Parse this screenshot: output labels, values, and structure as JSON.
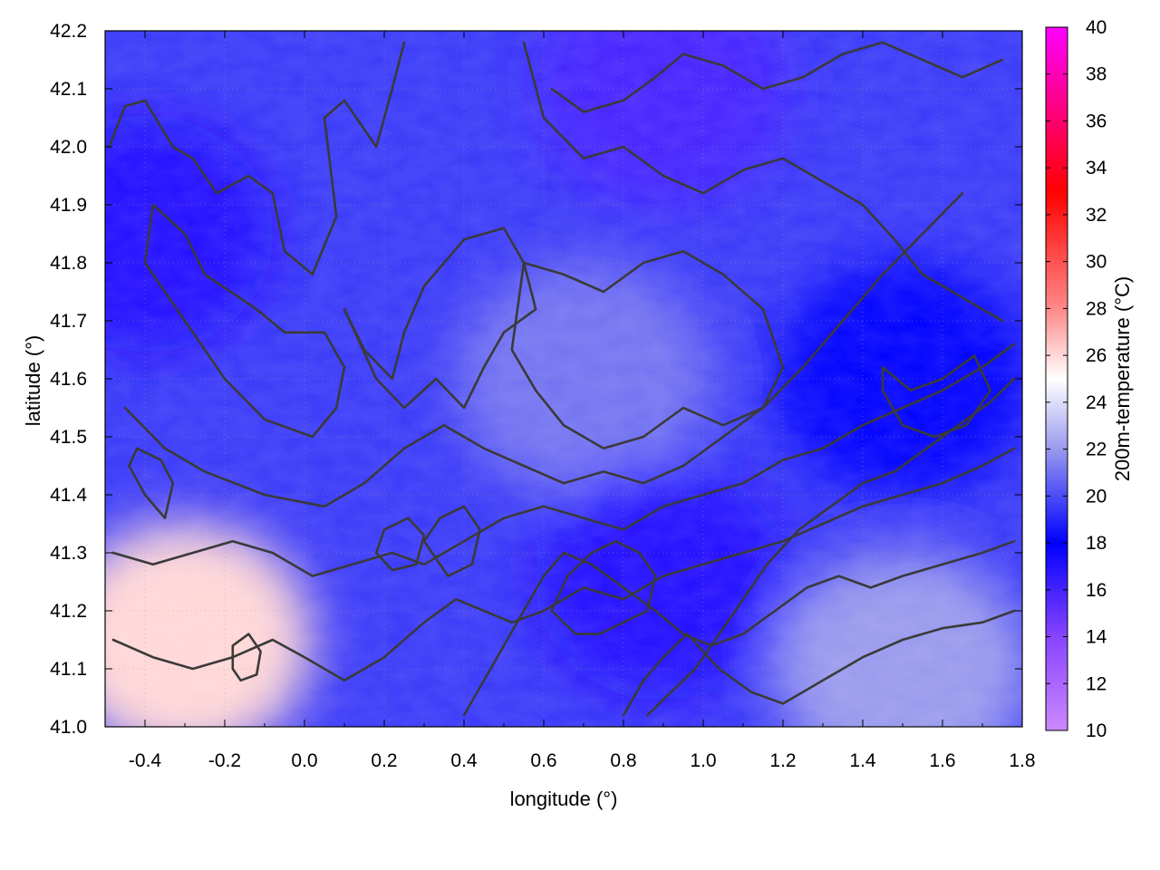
{
  "chart_data": {
    "type": "heatmap",
    "title": "",
    "xlabel": "longitude (°)",
    "ylabel": "latitude (°)",
    "colorbar_label": "200m-temperature (°C)",
    "xlim": [
      -0.5,
      1.8
    ],
    "ylim": [
      41.0,
      42.2
    ],
    "xticks": [
      "-0.4",
      "-0.2",
      "0.0",
      "0.2",
      "0.4",
      "0.6",
      "0.8",
      "1.0",
      "1.2",
      "1.4",
      "1.6",
      "1.8"
    ],
    "xtick_values": [
      -0.4,
      -0.2,
      0.0,
      0.2,
      0.4,
      0.6,
      0.8,
      1.0,
      1.2,
      1.4,
      1.6,
      1.8
    ],
    "yticks": [
      "41.0",
      "41.1",
      "41.2",
      "41.3",
      "41.4",
      "41.5",
      "41.6",
      "41.7",
      "41.8",
      "41.9",
      "42.0",
      "42.1",
      "42.2"
    ],
    "ytick_values": [
      41.0,
      41.1,
      41.2,
      41.3,
      41.4,
      41.5,
      41.6,
      41.7,
      41.8,
      41.9,
      42.0,
      42.1,
      42.2
    ],
    "colorbar_ticks": [
      "10",
      "12",
      "14",
      "16",
      "18",
      "20",
      "22",
      "24",
      "26",
      "28",
      "30",
      "32",
      "34",
      "36",
      "38",
      "40"
    ],
    "colorbar_values": [
      10,
      12,
      14,
      16,
      18,
      20,
      22,
      24,
      26,
      28,
      30,
      32,
      34,
      36,
      38,
      40
    ],
    "colorbar_range": [
      10,
      40
    ],
    "colormap": [
      {
        "value": 10,
        "color": "#cc88ff"
      },
      {
        "value": 14,
        "color": "#8844ff"
      },
      {
        "value": 18,
        "color": "#0000ff"
      },
      {
        "value": 22,
        "color": "#9999ee"
      },
      {
        "value": 25,
        "color": "#ffffff"
      },
      {
        "value": 28,
        "color": "#ff8888"
      },
      {
        "value": 33,
        "color": "#ff0000"
      },
      {
        "value": 40,
        "color": "#ff00ff"
      }
    ],
    "grid": true,
    "field_regions": [
      {
        "lon": 0.7,
        "lat": 41.6,
        "temperature": 21,
        "note": "central lighter band"
      },
      {
        "lon": 1.5,
        "lat": 41.6,
        "temperature": 18
      },
      {
        "lon": 1.5,
        "lat": 41.1,
        "temperature": 22
      },
      {
        "lon": -0.3,
        "lat": 41.15,
        "temperature": 26
      },
      {
        "lon": -0.4,
        "lat": 41.85,
        "temperature": 17
      },
      {
        "lon": 0.9,
        "lat": 41.25,
        "temperature": 17
      },
      {
        "lon": 0.9,
        "lat": 42.1,
        "temperature": 16
      }
    ],
    "contours": [
      {
        "name": "c1",
        "points": [
          [
            -0.49,
            42.0
          ],
          [
            -0.45,
            42.07
          ],
          [
            -0.4,
            42.08
          ],
          [
            -0.33,
            42.0
          ],
          [
            -0.28,
            41.98
          ],
          [
            -0.22,
            41.92
          ],
          [
            -0.14,
            41.95
          ],
          [
            -0.08,
            41.92
          ],
          [
            -0.05,
            41.82
          ],
          [
            0.02,
            41.78
          ],
          [
            0.08,
            41.88
          ],
          [
            0.05,
            42.05
          ],
          [
            0.1,
            42.08
          ],
          [
            0.18,
            42.0
          ],
          [
            0.22,
            42.1
          ],
          [
            0.25,
            42.18
          ]
        ]
      },
      {
        "name": "c2",
        "points": [
          [
            -0.38,
            41.9
          ],
          [
            -0.3,
            41.85
          ],
          [
            -0.25,
            41.78
          ],
          [
            -0.12,
            41.72
          ],
          [
            -0.05,
            41.68
          ],
          [
            0.05,
            41.68
          ],
          [
            0.1,
            41.62
          ],
          [
            0.08,
            41.55
          ],
          [
            0.02,
            41.5
          ],
          [
            -0.1,
            41.53
          ],
          [
            -0.2,
            41.6
          ],
          [
            -0.3,
            41.7
          ],
          [
            -0.4,
            41.8
          ],
          [
            -0.38,
            41.9
          ]
        ]
      },
      {
        "name": "c3",
        "points": [
          [
            0.1,
            41.72
          ],
          [
            0.15,
            41.65
          ],
          [
            0.22,
            41.6
          ],
          [
            0.25,
            41.68
          ],
          [
            0.3,
            41.76
          ],
          [
            0.4,
            41.84
          ],
          [
            0.5,
            41.86
          ],
          [
            0.55,
            41.8
          ],
          [
            0.58,
            41.72
          ],
          [
            0.5,
            41.68
          ],
          [
            0.45,
            41.62
          ],
          [
            0.4,
            41.55
          ],
          [
            0.33,
            41.6
          ],
          [
            0.25,
            41.55
          ],
          [
            0.18,
            41.6
          ],
          [
            0.1,
            41.72
          ]
        ]
      },
      {
        "name": "c4",
        "points": [
          [
            0.55,
            41.8
          ],
          [
            0.65,
            41.78
          ],
          [
            0.75,
            41.75
          ],
          [
            0.85,
            41.8
          ],
          [
            0.95,
            41.82
          ],
          [
            1.05,
            41.78
          ],
          [
            1.15,
            41.72
          ],
          [
            1.2,
            41.62
          ],
          [
            1.15,
            41.55
          ],
          [
            1.05,
            41.52
          ],
          [
            0.95,
            41.55
          ],
          [
            0.85,
            41.5
          ],
          [
            0.75,
            41.48
          ],
          [
            0.65,
            41.52
          ],
          [
            0.58,
            41.58
          ],
          [
            0.52,
            41.65
          ],
          [
            0.55,
            41.8
          ]
        ]
      },
      {
        "name": "c5",
        "points": [
          [
            -0.45,
            41.55
          ],
          [
            -0.35,
            41.48
          ],
          [
            -0.25,
            41.44
          ],
          [
            -0.1,
            41.4
          ],
          [
            0.05,
            41.38
          ],
          [
            0.15,
            41.42
          ],
          [
            0.25,
            41.48
          ],
          [
            0.35,
            41.52
          ],
          [
            0.45,
            41.48
          ],
          [
            0.55,
            41.45
          ],
          [
            0.65,
            41.42
          ],
          [
            0.75,
            41.44
          ],
          [
            0.85,
            41.42
          ],
          [
            0.95,
            41.45
          ],
          [
            1.05,
            41.5
          ],
          [
            1.15,
            41.55
          ],
          [
            1.25,
            41.62
          ],
          [
            1.35,
            41.7
          ],
          [
            1.45,
            41.78
          ],
          [
            1.55,
            41.85
          ],
          [
            1.65,
            41.92
          ]
        ]
      },
      {
        "name": "c6",
        "points": [
          [
            -0.48,
            41.3
          ],
          [
            -0.38,
            41.28
          ],
          [
            -0.28,
            41.3
          ],
          [
            -0.18,
            41.32
          ],
          [
            -0.08,
            41.3
          ],
          [
            0.02,
            41.26
          ],
          [
            0.12,
            41.28
          ],
          [
            0.22,
            41.3
          ],
          [
            0.3,
            41.28
          ],
          [
            0.4,
            41.32
          ],
          [
            0.5,
            41.36
          ],
          [
            0.6,
            41.38
          ],
          [
            0.7,
            41.36
          ],
          [
            0.8,
            41.34
          ],
          [
            0.9,
            41.38
          ],
          [
            1.0,
            41.4
          ],
          [
            1.1,
            41.42
          ],
          [
            1.2,
            41.46
          ],
          [
            1.3,
            41.48
          ],
          [
            1.4,
            41.52
          ],
          [
            1.5,
            41.55
          ],
          [
            1.6,
            41.58
          ],
          [
            1.7,
            41.62
          ],
          [
            1.78,
            41.66
          ]
        ]
      },
      {
        "name": "c7",
        "points": [
          [
            -0.48,
            41.15
          ],
          [
            -0.38,
            41.12
          ],
          [
            -0.28,
            41.1
          ],
          [
            -0.18,
            41.12
          ],
          [
            -0.08,
            41.15
          ],
          [
            0.0,
            41.12
          ],
          [
            0.1,
            41.08
          ],
          [
            0.2,
            41.12
          ],
          [
            0.3,
            41.18
          ],
          [
            0.38,
            41.22
          ],
          [
            0.45,
            41.2
          ],
          [
            0.52,
            41.18
          ],
          [
            0.6,
            41.2
          ],
          [
            0.7,
            41.24
          ],
          [
            0.8,
            41.22
          ],
          [
            0.9,
            41.26
          ],
          [
            1.0,
            41.28
          ],
          [
            1.1,
            41.3
          ],
          [
            1.2,
            41.32
          ],
          [
            1.3,
            41.35
          ],
          [
            1.4,
            41.38
          ],
          [
            1.5,
            41.4
          ],
          [
            1.6,
            41.42
          ],
          [
            1.7,
            41.45
          ],
          [
            1.78,
            41.48
          ]
        ]
      },
      {
        "name": "c8",
        "points": [
          [
            0.4,
            41.02
          ],
          [
            0.45,
            41.08
          ],
          [
            0.5,
            41.14
          ],
          [
            0.55,
            41.2
          ],
          [
            0.6,
            41.26
          ],
          [
            0.65,
            41.3
          ],
          [
            0.72,
            41.28
          ],
          [
            0.8,
            41.24
          ],
          [
            0.88,
            41.2
          ],
          [
            0.95,
            41.16
          ],
          [
            1.02,
            41.14
          ],
          [
            1.1,
            41.16
          ],
          [
            1.18,
            41.2
          ],
          [
            1.26,
            41.24
          ],
          [
            1.34,
            41.26
          ],
          [
            1.42,
            41.24
          ],
          [
            1.5,
            41.26
          ],
          [
            1.6,
            41.28
          ],
          [
            1.7,
            41.3
          ],
          [
            1.78,
            41.32
          ]
        ]
      },
      {
        "name": "c9",
        "points": [
          [
            0.8,
            41.02
          ],
          [
            0.85,
            41.08
          ],
          [
            0.9,
            41.12
          ],
          [
            0.96,
            41.16
          ],
          [
            1.04,
            41.1
          ],
          [
            1.12,
            41.06
          ],
          [
            1.2,
            41.04
          ],
          [
            1.3,
            41.08
          ],
          [
            1.4,
            41.12
          ],
          [
            1.5,
            41.15
          ],
          [
            1.6,
            41.17
          ],
          [
            1.7,
            41.18
          ],
          [
            1.78,
            41.2
          ]
        ]
      },
      {
        "name": "c10",
        "points": [
          [
            0.86,
            41.02
          ],
          [
            0.92,
            41.06
          ],
          [
            0.98,
            41.1
          ],
          [
            1.04,
            41.16
          ],
          [
            1.1,
            41.22
          ],
          [
            1.16,
            41.28
          ],
          [
            1.24,
            41.34
          ],
          [
            1.32,
            41.38
          ],
          [
            1.4,
            41.42
          ],
          [
            1.48,
            41.44
          ],
          [
            1.56,
            41.48
          ],
          [
            1.64,
            41.52
          ],
          [
            1.72,
            41.56
          ],
          [
            1.78,
            41.6
          ]
        ]
      },
      {
        "name": "c11",
        "points": [
          [
            0.62,
            41.2
          ],
          [
            0.66,
            41.26
          ],
          [
            0.72,
            41.3
          ],
          [
            0.78,
            41.32
          ],
          [
            0.84,
            41.3
          ],
          [
            0.88,
            41.26
          ],
          [
            0.86,
            41.2
          ],
          [
            0.8,
            41.18
          ],
          [
            0.74,
            41.16
          ],
          [
            0.68,
            41.16
          ],
          [
            0.62,
            41.2
          ]
        ]
      },
      {
        "name": "c12",
        "points": [
          [
            0.3,
            41.32
          ],
          [
            0.34,
            41.36
          ],
          [
            0.4,
            41.38
          ],
          [
            0.44,
            41.34
          ],
          [
            0.42,
            41.28
          ],
          [
            0.36,
            41.26
          ],
          [
            0.3,
            41.32
          ]
        ]
      },
      {
        "name": "c13",
        "points": [
          [
            0.62,
            42.1
          ],
          [
            0.7,
            42.06
          ],
          [
            0.8,
            42.08
          ],
          [
            0.88,
            42.12
          ],
          [
            0.95,
            42.16
          ],
          [
            1.05,
            42.14
          ],
          [
            1.15,
            42.1
          ],
          [
            1.25,
            42.12
          ],
          [
            1.35,
            42.16
          ],
          [
            1.45,
            42.18
          ],
          [
            1.55,
            42.15
          ],
          [
            1.65,
            42.12
          ],
          [
            1.75,
            42.15
          ]
        ]
      },
      {
        "name": "c14",
        "points": [
          [
            0.55,
            42.18
          ],
          [
            0.6,
            42.05
          ],
          [
            0.7,
            41.98
          ],
          [
            0.8,
            42.0
          ],
          [
            0.9,
            41.95
          ],
          [
            1.0,
            41.92
          ],
          [
            1.1,
            41.96
          ],
          [
            1.2,
            41.98
          ],
          [
            1.3,
            41.94
          ],
          [
            1.4,
            41.9
          ],
          [
            1.48,
            41.84
          ],
          [
            1.55,
            41.78
          ],
          [
            1.65,
            41.74
          ],
          [
            1.75,
            41.7
          ]
        ]
      },
      {
        "name": "c15",
        "points": [
          [
            1.45,
            41.62
          ],
          [
            1.52,
            41.58
          ],
          [
            1.6,
            41.6
          ],
          [
            1.68,
            41.64
          ],
          [
            1.72,
            41.58
          ],
          [
            1.66,
            41.52
          ],
          [
            1.58,
            41.5
          ],
          [
            1.5,
            41.52
          ],
          [
            1.45,
            41.58
          ],
          [
            1.45,
            41.62
          ]
        ]
      },
      {
        "name": "c16",
        "points": [
          [
            -0.44,
            41.45
          ],
          [
            -0.4,
            41.4
          ],
          [
            -0.35,
            41.36
          ],
          [
            -0.33,
            41.42
          ],
          [
            -0.36,
            41.46
          ],
          [
            -0.42,
            41.48
          ],
          [
            -0.44,
            41.45
          ]
        ]
      },
      {
        "name": "c17",
        "points": [
          [
            0.18,
            41.3
          ],
          [
            0.2,
            41.34
          ],
          [
            0.26,
            41.36
          ],
          [
            0.3,
            41.33
          ],
          [
            0.28,
            41.28
          ],
          [
            0.22,
            41.27
          ],
          [
            0.18,
            41.3
          ]
        ]
      },
      {
        "name": "c18",
        "points": [
          [
            -0.18,
            41.1
          ],
          [
            -0.18,
            41.14
          ],
          [
            -0.14,
            41.16
          ],
          [
            -0.11,
            41.13
          ],
          [
            -0.12,
            41.09
          ],
          [
            -0.16,
            41.08
          ],
          [
            -0.18,
            41.1
          ]
        ]
      }
    ]
  }
}
